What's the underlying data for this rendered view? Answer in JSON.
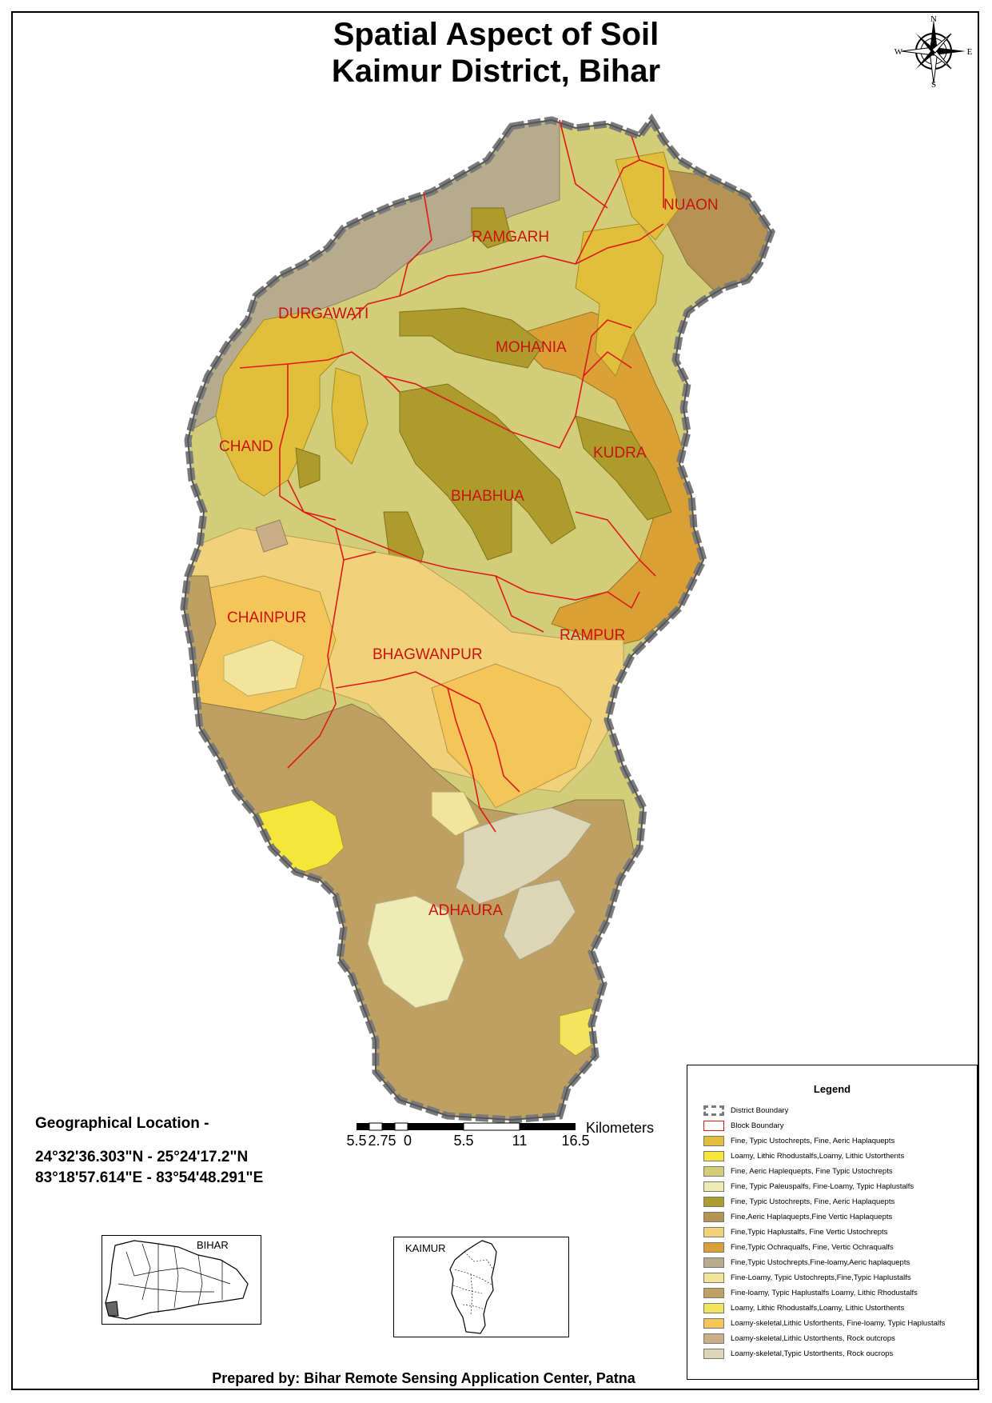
{
  "title": {
    "line1": "Spatial Aspect of Soil",
    "line2": "Kaimur District, Bihar"
  },
  "compass": {
    "n": "N",
    "s": "S",
    "e": "E",
    "w": "W"
  },
  "blocks": [
    "RAMGARH",
    "NUAON",
    "DURGAWATI",
    "MOHANIA",
    "CHAND",
    "KUDRA",
    "BHABHUA",
    "CHAINPUR",
    "RAMPUR",
    "BHAGWANPUR",
    "ADHAURA"
  ],
  "geo": {
    "heading": "Geographical Location -",
    "lat": "24°32'36.303\"N - 25°24'17.2\"N",
    "lon": "83°18'57.614\"E  - 83°54'48.291\"E"
  },
  "scale": {
    "unit": "Kilometers",
    "ticks": [
      "5.5",
      "2.75",
      "0",
      "5.5",
      "11",
      "16.5"
    ]
  },
  "insets": {
    "state": "BIHAR",
    "district": "KAIMUR"
  },
  "legend": {
    "title": "Legend",
    "district_boundary": "District Boundary",
    "block_boundary": "Block Boundary",
    "items": [
      {
        "label": "Fine, Typic Ustochrepts, Fine, Aeric Haplaquepts",
        "color": "#e1bf3b"
      },
      {
        "label": "Loamy, Lithic Rhodustalfs,Loamy, Lithic Ustorthents",
        "color": "#f5e63a"
      },
      {
        "label": "Fine, Aeric Haplequepts, Fine Typic Ustochrepts",
        "color": "#d3cd78"
      },
      {
        "label": "Fine, Typic Paleuspalfs, Fine-Loamy, Typic Haplustalfs",
        "color": "#efebb4"
      },
      {
        "label": "Fine, Typic Ustochrepts, Fine, Aeric Haplaquepts",
        "color": "#ad9b2b"
      },
      {
        "label": "Fine,Aeric Haplaquepts,Fine Vertic Haplaquepts",
        "color": "#b49353"
      },
      {
        "label": "Fine,Typic Haplustalfs, Fine Vertic Ustochrepts",
        "color": "#f0d27a"
      },
      {
        "label": "Fine,Typic Ochraqualfs, Fine, Vertic Ochraqualfs",
        "color": "#d9a035"
      },
      {
        "label": "Fine,Typic Ustochrepts,Fine-loamy,Aeric haplaquepts",
        "color": "#b6ab8d"
      },
      {
        "label": "Fine-Loamy, Typic Ustochrepts,Fine,Typic Haplustalfs",
        "color": "#f2e59a"
      },
      {
        "label": "Fine-loamy, Typic Haplustalfs Loamy, Lithic Rhodustalfs",
        "color": "#bda062"
      },
      {
        "label": "Loamy, Lithic Rhodustalfs,Loamy, Lithic Ustorthents",
        "color": "#f3e45d"
      },
      {
        "label": "Loamy-skeletal,Lithic Usforthents, Fine-loamy, Typic Haplustalfs",
        "color": "#f4c659"
      },
      {
        "label": "Loamy-skeletal,Lithic Ustorthents, Rock outcrops",
        "color": "#c9ae88"
      },
      {
        "label": "Loamy-skeletal,Typic Ustorthents, Rock oucrops",
        "color": "#dcd6b7"
      }
    ]
  },
  "credit": "Prepared by: Bihar Remote Sensing Application Center, Patna"
}
